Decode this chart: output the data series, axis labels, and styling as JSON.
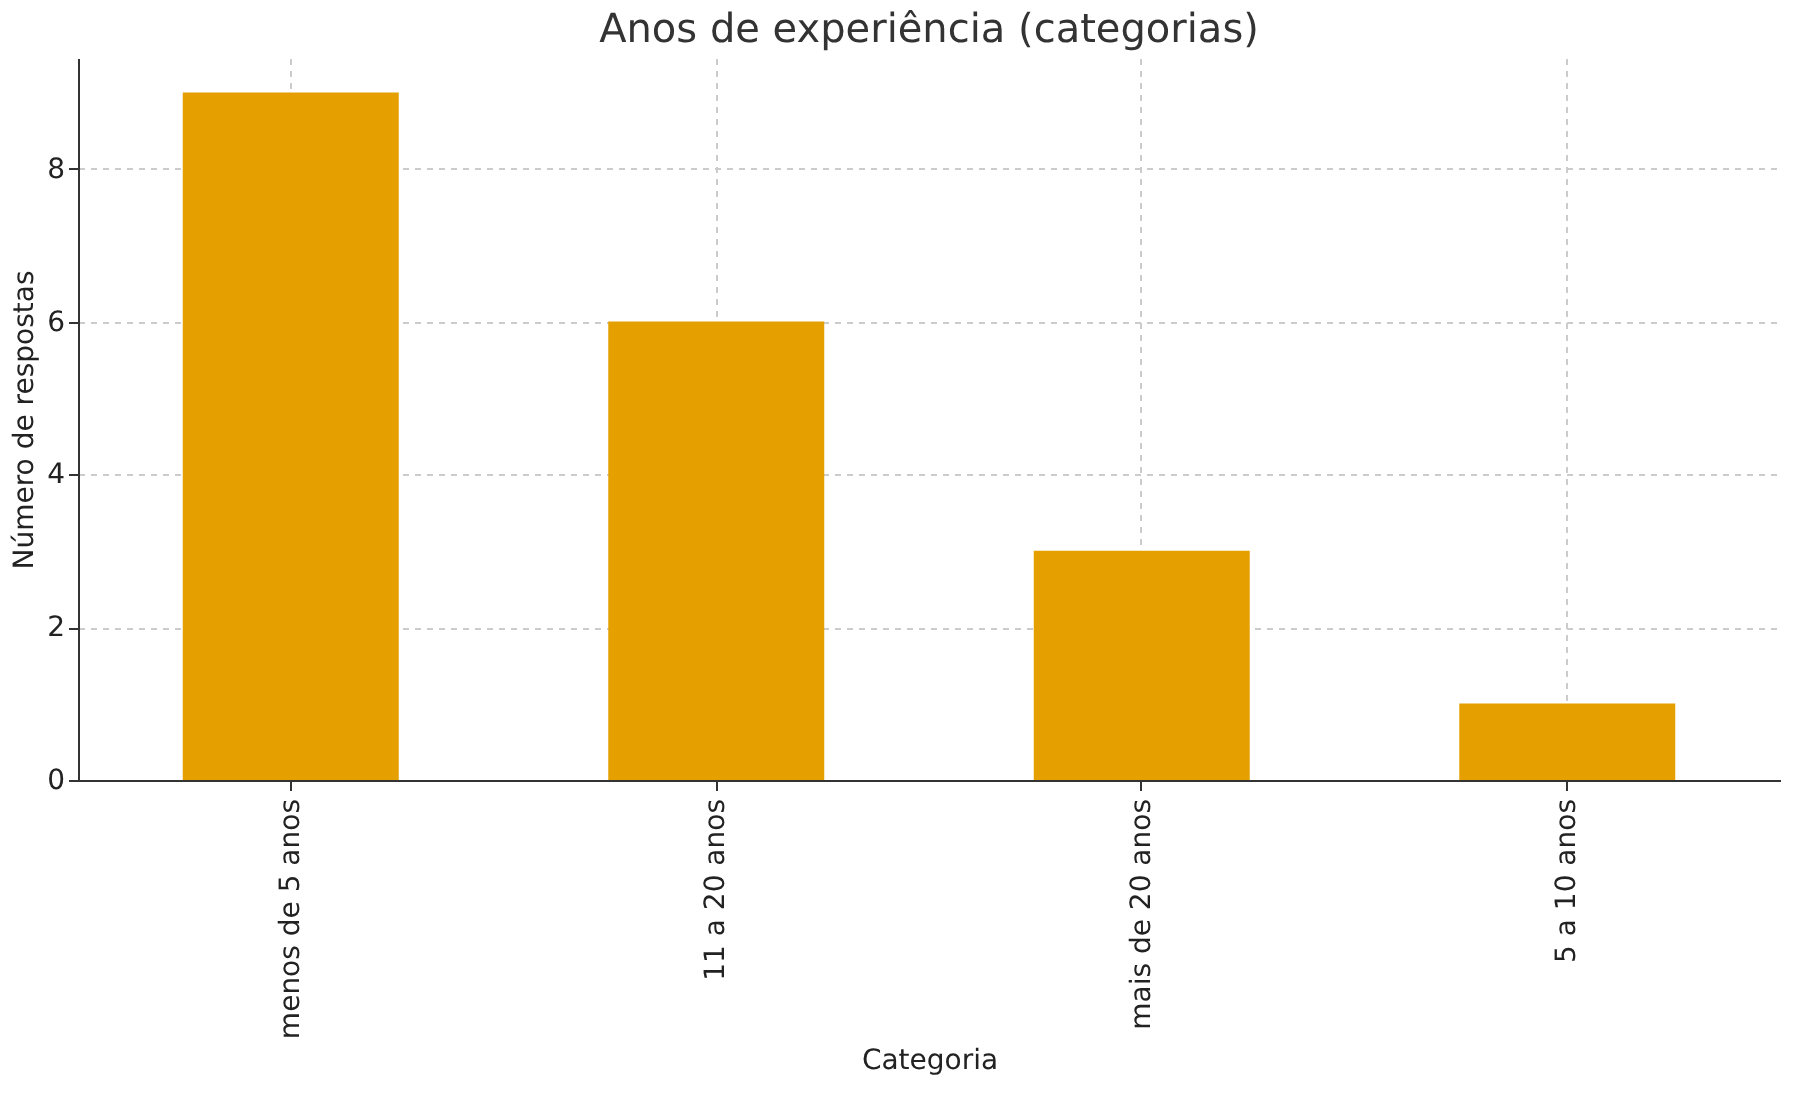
{
  "chart_data": {
    "type": "bar",
    "title": "Anos de experiência (categorias)",
    "xlabel": "Categoria",
    "ylabel": "Número de respostas",
    "categories": [
      "menos de 5 anos",
      "11 a 20 anos",
      "mais de 20 anos",
      "5 a 10 anos"
    ],
    "values": [
      9,
      6,
      3,
      1
    ],
    "color": "#e5a000",
    "ylim": [
      0,
      9.45
    ],
    "yticks": [
      0,
      2,
      4,
      6,
      8
    ],
    "grid": true
  }
}
